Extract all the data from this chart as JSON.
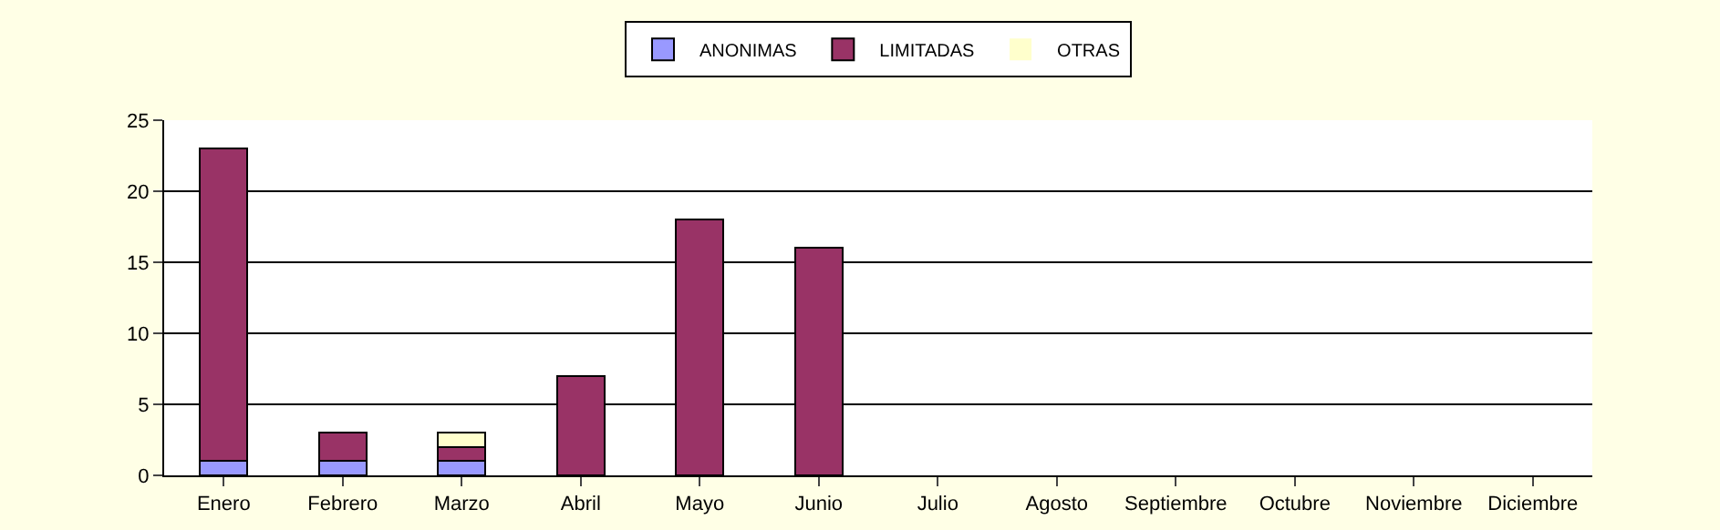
{
  "chart_data": {
    "type": "bar",
    "stacked": true,
    "categories": [
      "Enero",
      "Febrero",
      "Marzo",
      "Abril",
      "Mayo",
      "Junio",
      "Julio",
      "Agosto",
      "Septiembre",
      "Octubre",
      "Noviembre",
      "Diciembre"
    ],
    "series": [
      {
        "name": "ANONIMAS",
        "color": "#9999ff",
        "values": [
          1,
          1,
          1,
          0,
          0,
          0,
          0,
          0,
          0,
          0,
          0,
          0
        ]
      },
      {
        "name": "LIMITADAS",
        "color": "#993366",
        "values": [
          22,
          2,
          1,
          7,
          18,
          16,
          0,
          0,
          0,
          0,
          0,
          0
        ]
      },
      {
        "name": "OTRAS",
        "color": "#ffffcc",
        "values": [
          0,
          0,
          1,
          0,
          0,
          0,
          0,
          0,
          0,
          0,
          0,
          0
        ]
      }
    ],
    "ylim": [
      0,
      25
    ],
    "yticks": [
      0,
      5,
      10,
      15,
      20,
      25
    ],
    "grid": "y",
    "legend": "top"
  }
}
